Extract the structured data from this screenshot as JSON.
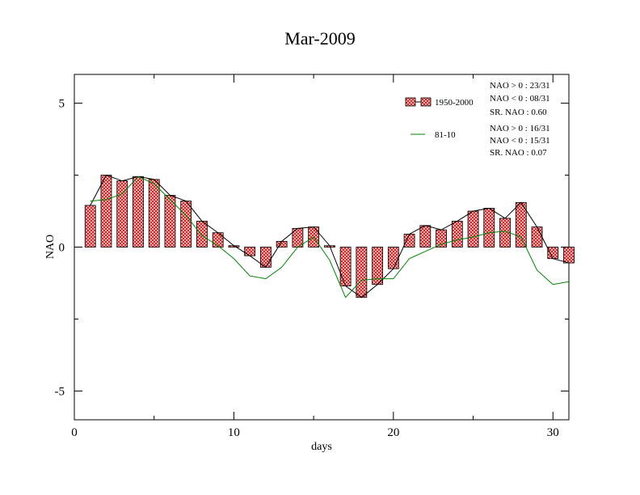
{
  "chart_data": {
    "type": "bar",
    "title": "Mar-2009",
    "xlabel": "days",
    "ylabel": "NAO",
    "xlim": [
      0,
      31
    ],
    "ylim": [
      -6,
      6
    ],
    "xticks": [
      0,
      10,
      20,
      30
    ],
    "yticks": [
      -5,
      0,
      5
    ],
    "xtick_labels": [
      "0",
      "10",
      "20",
      "30"
    ],
    "ytick_labels": [
      "-5",
      "0",
      "5"
    ],
    "legend_position": "top-right",
    "x": [
      1,
      2,
      3,
      4,
      5,
      6,
      7,
      8,
      9,
      10,
      11,
      12,
      13,
      14,
      15,
      16,
      17,
      18,
      19,
      20,
      21,
      22,
      23,
      24,
      25,
      26,
      27,
      28,
      29,
      30,
      31
    ],
    "series": [
      {
        "name": "1950-2000",
        "kind": "bar",
        "color": "#f08080",
        "values": [
          1.45,
          2.5,
          2.3,
          2.45,
          2.35,
          1.8,
          1.6,
          0.9,
          0.5,
          0.05,
          -0.3,
          -0.7,
          0.2,
          0.65,
          0.7,
          0.05,
          -1.35,
          -1.75,
          -1.3,
          -0.75,
          0.45,
          0.75,
          0.6,
          0.9,
          1.25,
          1.35,
          1.0,
          1.55,
          0.7,
          -0.4,
          -0.55
        ]
      },
      {
        "name": "81-10",
        "kind": "line",
        "color": "#008000",
        "values": [
          1.6,
          1.65,
          1.85,
          2.45,
          2.2,
          1.65,
          1.1,
          0.4,
          0.05,
          -0.4,
          -1.0,
          -1.1,
          -0.7,
          0.0,
          0.35,
          -0.45,
          -1.75,
          -1.15,
          -1.1,
          -1.1,
          -0.4,
          -0.15,
          0.1,
          0.25,
          0.35,
          0.5,
          0.55,
          0.35,
          -0.8,
          -1.3,
          -1.2
        ]
      }
    ],
    "stats": [
      {
        "series": "1950-2000",
        "lines": [
          "NAO > 0 :  23/31",
          "NAO < 0 :  08/31",
          "SR. NAO :  0.60"
        ]
      },
      {
        "series": "81-10",
        "lines": [
          "NAO > 0 :  16/31",
          "NAO < 0 :  15/31",
          "SR. NAO :  0.07"
        ]
      }
    ]
  }
}
